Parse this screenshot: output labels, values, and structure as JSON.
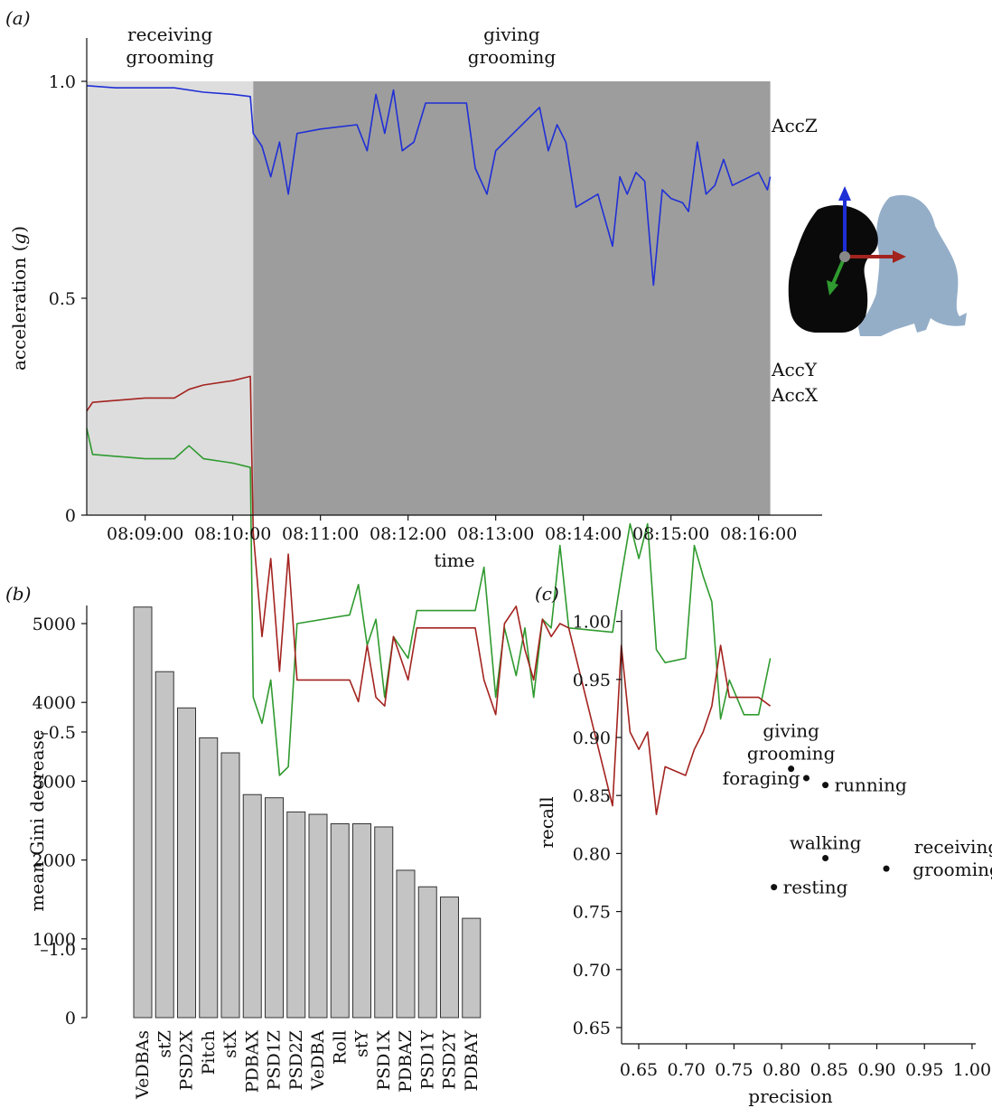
{
  "panels": {
    "a": "(a)",
    "b": "(b)",
    "c": "(c)"
  },
  "colors": {
    "accZ": "#1f2fd6",
    "accY": "#2f9a2f",
    "accX": "#a3231f",
    "bg_receiving": "#dddddd",
    "bg_giving": "#9d9d9d",
    "bar_fill": "#c4c4c4"
  },
  "chart_data": [
    {
      "type": "line",
      "panel": "a",
      "xlabel": "time",
      "ylabel_main": "acceleration (",
      "ylabel_unit": "g",
      "ylabel_close": ")",
      "ylim": [
        -1.0,
        1.05
      ],
      "yticks": [
        1.0,
        0.5,
        0,
        -0.5,
        -1.0
      ],
      "ytick_labels": [
        "1.0",
        "0.5",
        "0",
        "–0.5",
        "–1.0"
      ],
      "xlim": [
        "08:08:20",
        "08:16:30"
      ],
      "xticks": [
        "08:09:00",
        "08:10:00",
        "08:11:00",
        "08:12:00",
        "08:13:00",
        "08:14:00",
        "08:15:00",
        "08:16:00"
      ],
      "segments": [
        {
          "label": [
            "receiving",
            "grooming"
          ],
          "start": "08:08:20",
          "end": "08:10:14"
        },
        {
          "label": [
            "giving",
            "grooming"
          ],
          "start": "08:10:14",
          "end": "08:16:08"
        }
      ],
      "series": [
        {
          "name": "AccZ",
          "color": "#1f2fd6",
          "points": [
            [
              "08:08:20",
              0.99
            ],
            [
              "08:08:40",
              0.985
            ],
            [
              "08:09:00",
              0.985
            ],
            [
              "08:09:20",
              0.985
            ],
            [
              "08:09:40",
              0.975
            ],
            [
              "08:10:00",
              0.97
            ],
            [
              "08:10:12",
              0.965
            ],
            [
              "08:10:14",
              0.88
            ],
            [
              "08:10:20",
              0.85
            ],
            [
              "08:10:26",
              0.78
            ],
            [
              "08:10:32",
              0.86
            ],
            [
              "08:10:38",
              0.74
            ],
            [
              "08:10:44",
              0.88
            ],
            [
              "08:11:00",
              0.89
            ],
            [
              "08:11:25",
              0.9
            ],
            [
              "08:11:32",
              0.84
            ],
            [
              "08:11:38",
              0.97
            ],
            [
              "08:11:44",
              0.88
            ],
            [
              "08:11:50",
              0.98
            ],
            [
              "08:11:56",
              0.84
            ],
            [
              "08:12:04",
              0.86
            ],
            [
              "08:12:12",
              0.95
            ],
            [
              "08:12:40",
              0.95
            ],
            [
              "08:12:46",
              0.8
            ],
            [
              "08:12:54",
              0.74
            ],
            [
              "08:13:00",
              0.84
            ],
            [
              "08:13:30",
              0.94
            ],
            [
              "08:13:36",
              0.84
            ],
            [
              "08:13:42",
              0.9
            ],
            [
              "08:13:48",
              0.86
            ],
            [
              "08:13:55",
              0.71
            ],
            [
              "08:14:10",
              0.74
            ],
            [
              "08:14:20",
              0.62
            ],
            [
              "08:14:25",
              0.78
            ],
            [
              "08:14:30",
              0.74
            ],
            [
              "08:14:36",
              0.79
            ],
            [
              "08:14:42",
              0.77
            ],
            [
              "08:14:48",
              0.53
            ],
            [
              "08:14:54",
              0.75
            ],
            [
              "08:15:00",
              0.73
            ],
            [
              "08:15:08",
              0.72
            ],
            [
              "08:15:12",
              0.7
            ],
            [
              "08:15:18",
              0.86
            ],
            [
              "08:15:24",
              0.74
            ],
            [
              "08:15:30",
              0.76
            ],
            [
              "08:15:36",
              0.82
            ],
            [
              "08:15:42",
              0.76
            ],
            [
              "08:16:00",
              0.79
            ],
            [
              "08:16:06",
              0.75
            ],
            [
              "08:16:08",
              0.78
            ]
          ]
        },
        {
          "name": "AccY",
          "color": "#2f9a2f",
          "points": [
            [
              "08:08:20",
              0.2
            ],
            [
              "08:08:24",
              0.14
            ],
            [
              "08:09:00",
              0.13
            ],
            [
              "08:09:20",
              0.13
            ],
            [
              "08:09:30",
              0.16
            ],
            [
              "08:09:40",
              0.13
            ],
            [
              "08:10:00",
              0.12
            ],
            [
              "08:10:12",
              0.11
            ],
            [
              "08:10:14",
              -0.42
            ],
            [
              "08:10:20",
              -0.48
            ],
            [
              "08:10:26",
              -0.38
            ],
            [
              "08:10:32",
              -0.6
            ],
            [
              "08:10:38",
              -0.58
            ],
            [
              "08:10:44",
              -0.25
            ],
            [
              "08:11:20",
              -0.23
            ],
            [
              "08:11:26",
              -0.16
            ],
            [
              "08:11:32",
              -0.3
            ],
            [
              "08:11:38",
              -0.24
            ],
            [
              "08:11:44",
              -0.42
            ],
            [
              "08:11:50",
              -0.28
            ],
            [
              "08:12:00",
              -0.33
            ],
            [
              "08:12:06",
              -0.22
            ],
            [
              "08:12:46",
              -0.22
            ],
            [
              "08:12:52",
              -0.12
            ],
            [
              "08:13:00",
              -0.42
            ],
            [
              "08:13:06",
              -0.26
            ],
            [
              "08:13:14",
              -0.37
            ],
            [
              "08:13:20",
              -0.26
            ],
            [
              "08:13:26",
              -0.42
            ],
            [
              "08:13:32",
              -0.24
            ],
            [
              "08:13:38",
              -0.26
            ],
            [
              "08:13:44",
              -0.07
            ],
            [
              "08:13:50",
              -0.26
            ],
            [
              "08:14:20",
              -0.27
            ],
            [
              "08:14:26",
              -0.14
            ],
            [
              "08:14:32",
              -0.02
            ],
            [
              "08:14:38",
              -0.1
            ],
            [
              "08:14:44",
              -0.02
            ],
            [
              "08:14:50",
              -0.31
            ],
            [
              "08:14:56",
              -0.34
            ],
            [
              "08:15:10",
              -0.33
            ],
            [
              "08:15:16",
              -0.07
            ],
            [
              "08:15:22",
              -0.14
            ],
            [
              "08:15:28",
              -0.2
            ],
            [
              "08:15:34",
              -0.47
            ],
            [
              "08:15:40",
              -0.38
            ],
            [
              "08:15:50",
              -0.46
            ],
            [
              "08:16:00",
              -0.46
            ],
            [
              "08:16:08",
              -0.33
            ]
          ]
        },
        {
          "name": "AccX",
          "color": "#a3231f",
          "points": [
            [
              "08:08:20",
              0.24
            ],
            [
              "08:08:24",
              0.26
            ],
            [
              "08:09:00",
              0.27
            ],
            [
              "08:09:20",
              0.27
            ],
            [
              "08:09:30",
              0.29
            ],
            [
              "08:09:40",
              0.3
            ],
            [
              "08:10:00",
              0.31
            ],
            [
              "08:10:12",
              0.32
            ],
            [
              "08:10:14",
              -0.04
            ],
            [
              "08:10:20",
              -0.28
            ],
            [
              "08:10:26",
              -0.1
            ],
            [
              "08:10:32",
              -0.36
            ],
            [
              "08:10:38",
              -0.09
            ],
            [
              "08:10:44",
              -0.38
            ],
            [
              "08:11:20",
              -0.38
            ],
            [
              "08:11:26",
              -0.43
            ],
            [
              "08:11:32",
              -0.3
            ],
            [
              "08:11:38",
              -0.42
            ],
            [
              "08:11:44",
              -0.44
            ],
            [
              "08:11:50",
              -0.28
            ],
            [
              "08:12:00",
              -0.38
            ],
            [
              "08:12:06",
              -0.26
            ],
            [
              "08:12:46",
              -0.26
            ],
            [
              "08:12:52",
              -0.38
            ],
            [
              "08:13:00",
              -0.46
            ],
            [
              "08:13:06",
              -0.25
            ],
            [
              "08:13:14",
              -0.21
            ],
            [
              "08:13:20",
              -0.31
            ],
            [
              "08:13:26",
              -0.38
            ],
            [
              "08:13:32",
              -0.24
            ],
            [
              "08:13:38",
              -0.28
            ],
            [
              "08:13:44",
              -0.25
            ],
            [
              "08:13:50",
              -0.26
            ],
            [
              "08:14:20",
              -0.67
            ],
            [
              "08:14:26",
              -0.3
            ],
            [
              "08:14:32",
              -0.5
            ],
            [
              "08:14:38",
              -0.54
            ],
            [
              "08:14:44",
              -0.5
            ],
            [
              "08:14:50",
              -0.69
            ],
            [
              "08:14:56",
              -0.58
            ],
            [
              "08:15:10",
              -0.6
            ],
            [
              "08:15:16",
              -0.54
            ],
            [
              "08:15:22",
              -0.5
            ],
            [
              "08:15:28",
              -0.44
            ],
            [
              "08:15:34",
              -0.3
            ],
            [
              "08:15:40",
              -0.42
            ],
            [
              "08:16:00",
              -0.42
            ],
            [
              "08:16:08",
              -0.44
            ]
          ]
        }
      ]
    },
    {
      "type": "bar",
      "panel": "b",
      "ylabel": "mean Gini decrease",
      "ylim": [
        0,
        5300
      ],
      "yticks": [
        0,
        1000,
        2000,
        3000,
        4000,
        5000
      ],
      "categories": [
        "VeDBAs",
        "stZ",
        "PSD2X",
        "Pitch",
        "stX",
        "PDBAX",
        "PSD1Z",
        "PSD2Z",
        "VeDBA",
        "Roll",
        "stY",
        "PSD1X",
        "PDBAZ",
        "PSD1Y",
        "PSD2Y",
        "PDBAY"
      ],
      "values": [
        5210,
        4390,
        3930,
        3550,
        3360,
        2830,
        2790,
        2610,
        2580,
        2460,
        2460,
        2420,
        1870,
        1660,
        1530,
        1260
      ]
    },
    {
      "type": "scatter",
      "panel": "c",
      "xlabel": "precision",
      "ylabel": "recall",
      "xlim": [
        0.65,
        1.0
      ],
      "ylim": [
        0.65,
        1.0
      ],
      "xticks": [
        0.65,
        0.7,
        0.75,
        0.8,
        0.85,
        0.9,
        0.95,
        1.0
      ],
      "xtick_labels": [
        "0.65",
        "0.70",
        "0.75",
        "0.80",
        "0.85",
        "0.90",
        "0.95",
        "1.00"
      ],
      "yticks": [
        0.65,
        0.7,
        0.75,
        0.8,
        0.85,
        0.9,
        0.95,
        1.0
      ],
      "ytick_labels": [
        "0.65",
        "0.70",
        "0.75",
        "0.80",
        "0.85",
        "0.90",
        "0.95",
        "1.00"
      ],
      "points": [
        {
          "label": [
            "giving",
            "grooming"
          ],
          "x": 0.81,
          "y": 0.873,
          "label_pos": "above"
        },
        {
          "label": [
            "foraging"
          ],
          "x": 0.826,
          "y": 0.865,
          "label_pos": "left"
        },
        {
          "label": [
            "running"
          ],
          "x": 0.846,
          "y": 0.859,
          "label_pos": "right"
        },
        {
          "label": [
            "walking"
          ],
          "x": 0.846,
          "y": 0.796,
          "label_pos": "above"
        },
        {
          "label": [
            "resting"
          ],
          "x": 0.792,
          "y": 0.771,
          "label_pos": "right"
        },
        {
          "label": [
            "receiving",
            "grooming"
          ],
          "x": 0.91,
          "y": 0.787,
          "label_pos": "upper-right"
        }
      ]
    }
  ]
}
